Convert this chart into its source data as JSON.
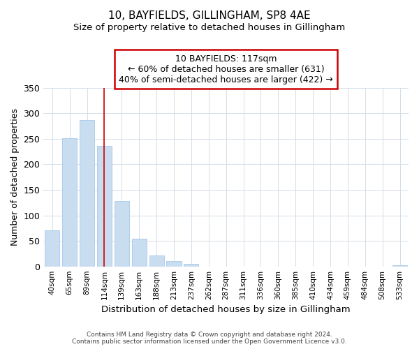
{
  "title": "10, BAYFIELDS, GILLINGHAM, SP8 4AE",
  "subtitle": "Size of property relative to detached houses in Gillingham",
  "xlabel": "Distribution of detached houses by size in Gillingham",
  "ylabel": "Number of detached properties",
  "bar_labels": [
    "40sqm",
    "65sqm",
    "89sqm",
    "114sqm",
    "139sqm",
    "163sqm",
    "188sqm",
    "213sqm",
    "237sqm",
    "262sqm",
    "287sqm",
    "311sqm",
    "336sqm",
    "360sqm",
    "385sqm",
    "410sqm",
    "434sqm",
    "459sqm",
    "484sqm",
    "508sqm",
    "533sqm"
  ],
  "bar_values": [
    70,
    251,
    287,
    236,
    128,
    54,
    22,
    11,
    5,
    0,
    0,
    0,
    0,
    0,
    0,
    0,
    0,
    0,
    0,
    0,
    2
  ],
  "bar_color": "#c8ddf0",
  "bar_edge_color": "#a8c8e8",
  "ylim": [
    0,
    350
  ],
  "yticks": [
    0,
    50,
    100,
    150,
    200,
    250,
    300,
    350
  ],
  "annotation_title": "10 BAYFIELDS: 117sqm",
  "annotation_line1": "← 60% of detached houses are smaller (631)",
  "annotation_line2": "40% of semi-detached houses are larger (422) →",
  "annotation_box_color": "#ffffff",
  "annotation_box_edge_color": "#cc0000",
  "marker_bar_index": 3,
  "marker_line_color": "#cc0000",
  "footer_line1": "Contains HM Land Registry data © Crown copyright and database right 2024.",
  "footer_line2": "Contains public sector information licensed under the Open Government Licence v3.0.",
  "grid_color": "#d4dde8",
  "bg_color": "#ffffff"
}
